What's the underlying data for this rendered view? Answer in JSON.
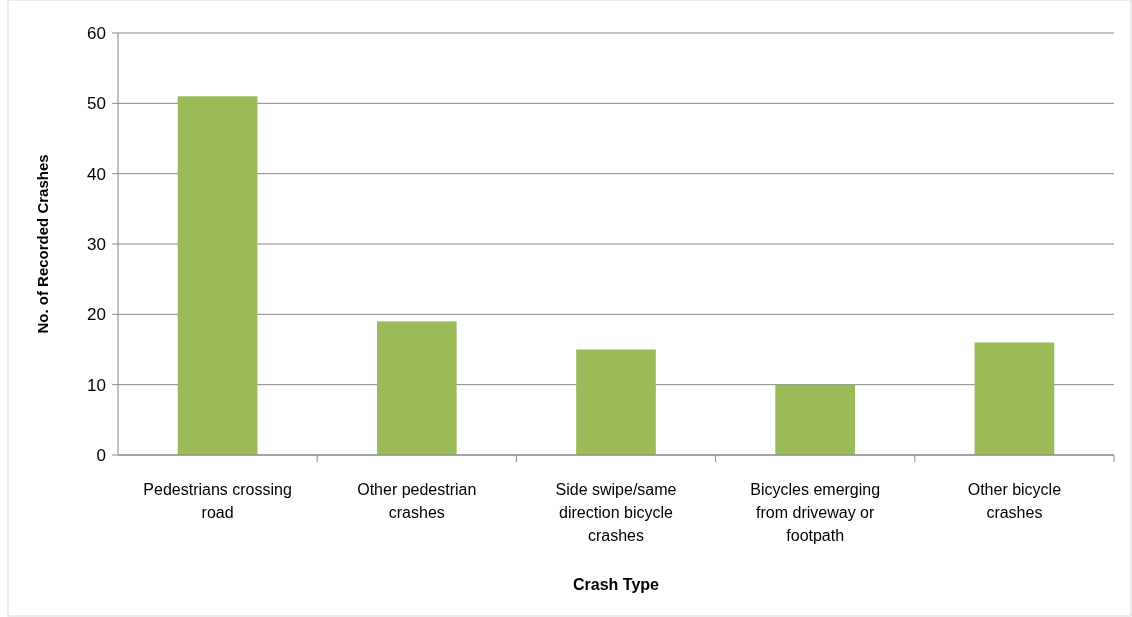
{
  "chart_data": {
    "type": "bar",
    "xlabel": "Crash Type",
    "ylabel": "No. of Recorded Crashes",
    "categories": [
      "Pedestrians crossing road",
      "Other pedestrian crashes",
      "Side swipe/same direction bicycle crashes",
      "Bicycles emerging from driveway or footpath",
      "Other bicycle crashes"
    ],
    "values": [
      51,
      19,
      15,
      10,
      16
    ],
    "color": "#9bbb59",
    "ylim": [
      0,
      60
    ],
    "yticks": [
      0,
      10,
      20,
      30,
      40,
      50,
      60
    ],
    "grid": "y"
  }
}
